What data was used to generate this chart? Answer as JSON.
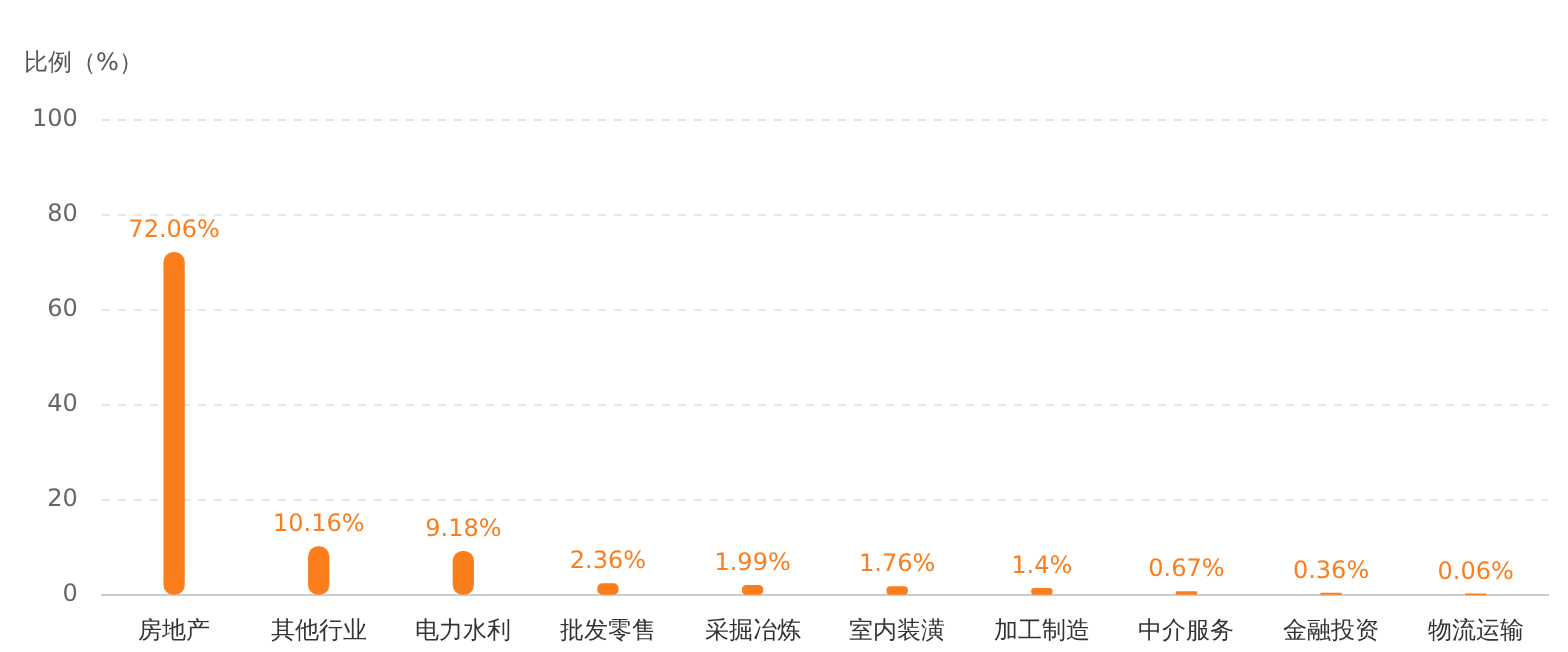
{
  "chart_data": {
    "type": "bar",
    "ylabel": "比例（%）",
    "categories": [
      "房地产",
      "其他行业",
      "电力水利",
      "批发零售",
      "采掘冶炼",
      "室内装潢",
      "加工制造",
      "中介服务",
      "金融投资",
      "物流运输"
    ],
    "values": [
      72.06,
      10.16,
      9.18,
      2.36,
      1.99,
      1.76,
      1.4,
      0.67,
      0.36,
      0.06
    ],
    "value_labels": [
      "72.06%",
      "10.16%",
      "9.18%",
      "2.36%",
      "1.99%",
      "1.76%",
      "1.4%",
      "0.67%",
      "0.36%",
      "0.06%"
    ],
    "color": "#fb7d1c",
    "ylim": [
      0,
      100
    ],
    "yticks": [
      0,
      20,
      40,
      60,
      80,
      100
    ],
    "grid": "y",
    "legend": false
  }
}
